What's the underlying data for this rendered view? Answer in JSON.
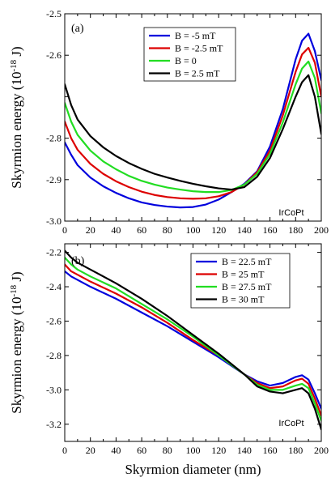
{
  "chart_data": [
    {
      "type": "line",
      "panel_label": "(a)",
      "annotation": "IrCoPt",
      "ylabel_text": "Skyrmion energy",
      "ylabel_unit": "(10",
      "ylabel_exp": "-18",
      "ylabel_tail": " J)",
      "xlim": [
        0,
        200
      ],
      "ylim": [
        -3.0,
        -2.5
      ],
      "xticks": [
        0,
        20,
        40,
        60,
        80,
        100,
        120,
        140,
        160,
        180,
        200
      ],
      "yticks": [
        -3.0,
        -2.9,
        -2.8,
        -2.7,
        -2.6,
        -2.5
      ],
      "ytick_labels": [
        "-3.0",
        "-2.9",
        "-2.8",
        "",
        "-2.6",
        "-2.5"
      ],
      "legend_position": "top-center",
      "series": [
        {
          "name": "B = -5 mT",
          "color": "#0000dd",
          "x": [
            0,
            5,
            10,
            20,
            30,
            40,
            50,
            60,
            70,
            80,
            90,
            100,
            110,
            120,
            130,
            140,
            150,
            160,
            170,
            180,
            185,
            190,
            195,
            200
          ],
          "y": [
            -2.81,
            -2.84,
            -2.865,
            -2.895,
            -2.916,
            -2.932,
            -2.945,
            -2.955,
            -2.961,
            -2.965,
            -2.967,
            -2.966,
            -2.96,
            -2.948,
            -2.93,
            -2.91,
            -2.88,
            -2.82,
            -2.73,
            -2.61,
            -2.565,
            -2.548,
            -2.59,
            -2.66
          ]
        },
        {
          "name": "B = -2.5 mT",
          "color": "#dd0000",
          "x": [
            0,
            5,
            10,
            20,
            30,
            40,
            50,
            60,
            70,
            80,
            90,
            100,
            110,
            120,
            130,
            140,
            150,
            160,
            170,
            180,
            185,
            190,
            195,
            200
          ],
          "y": [
            -2.76,
            -2.8,
            -2.828,
            -2.862,
            -2.886,
            -2.904,
            -2.918,
            -2.929,
            -2.937,
            -2.942,
            -2.945,
            -2.946,
            -2.945,
            -2.94,
            -2.93,
            -2.912,
            -2.882,
            -2.83,
            -2.745,
            -2.64,
            -2.598,
            -2.582,
            -2.618,
            -2.7
          ]
        },
        {
          "name": "B = 0",
          "color": "#22dd22",
          "x": [
            0,
            5,
            10,
            20,
            30,
            40,
            50,
            60,
            70,
            80,
            90,
            100,
            110,
            120,
            130,
            140,
            150,
            160,
            170,
            180,
            185,
            190,
            195,
            200
          ],
          "y": [
            -2.715,
            -2.76,
            -2.792,
            -2.83,
            -2.856,
            -2.875,
            -2.891,
            -2.903,
            -2.912,
            -2.919,
            -2.924,
            -2.928,
            -2.93,
            -2.93,
            -2.925,
            -2.912,
            -2.886,
            -2.838,
            -2.762,
            -2.67,
            -2.632,
            -2.615,
            -2.655,
            -2.74
          ]
        },
        {
          "name": "B = 2.5 mT",
          "color": "#000000",
          "x": [
            0,
            5,
            10,
            20,
            30,
            40,
            50,
            60,
            70,
            80,
            90,
            100,
            110,
            120,
            130,
            140,
            150,
            160,
            170,
            180,
            185,
            190,
            195,
            200
          ],
          "y": [
            -2.67,
            -2.72,
            -2.755,
            -2.795,
            -2.822,
            -2.843,
            -2.86,
            -2.874,
            -2.886,
            -2.895,
            -2.903,
            -2.91,
            -2.916,
            -2.921,
            -2.924,
            -2.918,
            -2.893,
            -2.848,
            -2.778,
            -2.7,
            -2.665,
            -2.648,
            -2.7,
            -2.79
          ]
        }
      ]
    },
    {
      "type": "line",
      "panel_label": "(b)",
      "annotation": "IrCoPt",
      "ylabel_text": "Skyrmion energy",
      "ylabel_unit": "(10",
      "ylabel_exp": "-18",
      "ylabel_tail": " J)",
      "xlabel": "Skyrmion diameter (nm)",
      "xlim": [
        0,
        200
      ],
      "ylim": [
        -3.3,
        -2.15
      ],
      "xticks": [
        0,
        20,
        40,
        60,
        80,
        100,
        120,
        140,
        160,
        180,
        200
      ],
      "yticks": [
        -3.2,
        -3.0,
        -2.8,
        -2.6,
        -2.4,
        -2.2
      ],
      "ytick_labels": [
        "-3.2",
        "-3.0",
        "-2.8",
        "-2.6",
        "-2.4",
        "-2.2"
      ],
      "legend_position": "top-right",
      "series": [
        {
          "name": "B = 22.5 mT",
          "color": "#0000dd",
          "x": [
            0,
            5,
            10,
            20,
            40,
            60,
            80,
            100,
            120,
            140,
            150,
            160,
            170,
            180,
            185,
            190,
            195,
            200
          ],
          "y": [
            -2.31,
            -2.34,
            -2.36,
            -2.4,
            -2.47,
            -2.55,
            -2.63,
            -2.72,
            -2.81,
            -2.91,
            -2.95,
            -2.975,
            -2.96,
            -2.925,
            -2.915,
            -2.94,
            -3.02,
            -3.11
          ]
        },
        {
          "name": "B = 25 mT",
          "color": "#dd0000",
          "x": [
            0,
            5,
            10,
            20,
            40,
            60,
            80,
            100,
            120,
            140,
            150,
            160,
            170,
            180,
            185,
            190,
            195,
            200
          ],
          "y": [
            -2.27,
            -2.31,
            -2.33,
            -2.37,
            -2.44,
            -2.52,
            -2.61,
            -2.71,
            -2.8,
            -2.91,
            -2.96,
            -2.99,
            -2.98,
            -2.945,
            -2.935,
            -2.965,
            -3.05,
            -3.15
          ]
        },
        {
          "name": "B = 27.5 mT",
          "color": "#22dd22",
          "x": [
            0,
            5,
            10,
            20,
            40,
            60,
            80,
            100,
            120,
            140,
            150,
            160,
            170,
            180,
            185,
            190,
            195,
            200
          ],
          "y": [
            -2.23,
            -2.27,
            -2.3,
            -2.34,
            -2.41,
            -2.5,
            -2.59,
            -2.69,
            -2.8,
            -2.91,
            -2.97,
            -3.0,
            -3.0,
            -2.975,
            -2.965,
            -2.99,
            -3.08,
            -3.18
          ]
        },
        {
          "name": "B = 30 mT",
          "color": "#000000",
          "x": [
            0,
            5,
            10,
            20,
            40,
            60,
            80,
            100,
            120,
            140,
            150,
            160,
            170,
            180,
            185,
            190,
            195,
            200
          ],
          "y": [
            -2.19,
            -2.23,
            -2.26,
            -2.3,
            -2.38,
            -2.47,
            -2.57,
            -2.68,
            -2.79,
            -2.91,
            -2.98,
            -3.01,
            -3.02,
            -3.0,
            -2.99,
            -3.02,
            -3.11,
            -3.23
          ]
        }
      ]
    }
  ]
}
